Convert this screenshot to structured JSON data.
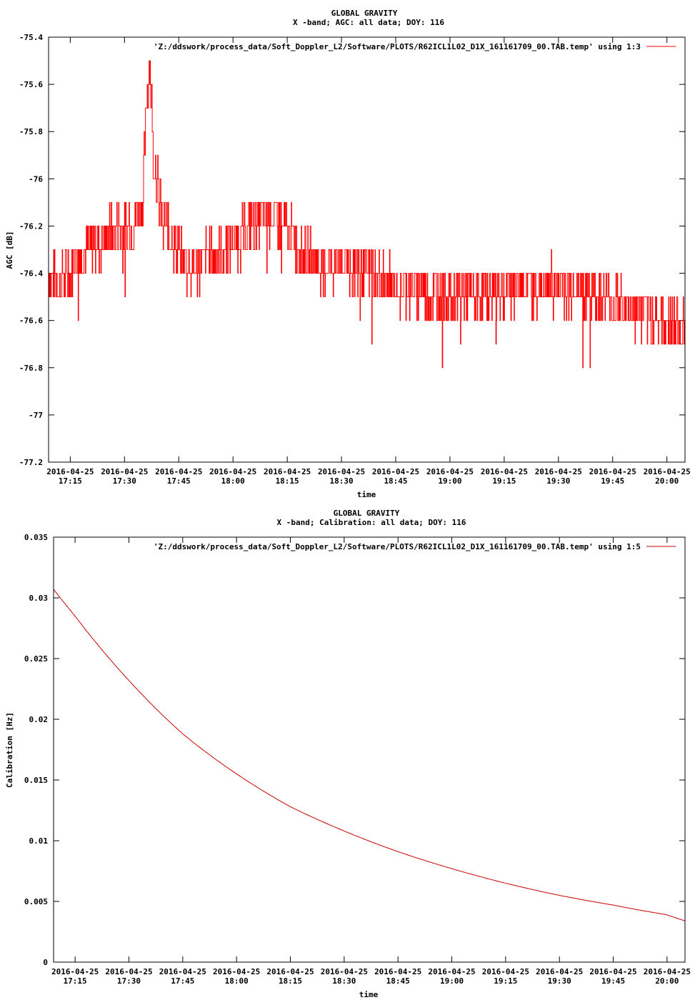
{
  "chart_data": [
    {
      "type": "line",
      "title": "GLOBAL GRAVITY",
      "subtitle": "X -band; AGC: all data; DOY: 116",
      "xlabel": "time",
      "ylabel": "AGC [dB]",
      "ylim": [
        -77.2,
        -75.4
      ],
      "yticks": [
        -75.4,
        -75.6,
        -75.8,
        -76,
        -76.2,
        -76.4,
        -76.6,
        -76.8,
        -77,
        -77.2
      ],
      "yticklabels": [
        "-75.4",
        "-75.6",
        "-75.8",
        "-76",
        "-76.2",
        "-76.4",
        "-76.6",
        "-76.8",
        "-77",
        "-77.2"
      ],
      "xlim": [
        "2016-04-25 17:09",
        "2016-04-25 20:05"
      ],
      "xticks": [
        "17:15",
        "17:30",
        "17:45",
        "18:00",
        "18:15",
        "18:30",
        "18:45",
        "19:00",
        "19:15",
        "19:30",
        "19:45",
        "20:00"
      ],
      "xtick_date": "2016-04-25",
      "grid": false,
      "legend_position": "top-right",
      "series": [
        {
          "name": "'Z:/ddswork/process_data/Soft_Doppler_L2/Software/PLOTS/R62ICL1L02_D1X_161161709_00.TAB.temp' using 1:3",
          "color": "#ff0000",
          "x": [
            "17:09",
            "17:12",
            "17:14",
            "17:16",
            "17:20",
            "17:24",
            "17:28",
            "17:32",
            "17:35",
            "17:36",
            "17:37",
            "17:38",
            "17:40",
            "17:43",
            "17:46",
            "17:50",
            "17:54",
            "17:58",
            "18:02",
            "18:06",
            "18:10",
            "18:13",
            "18:15",
            "18:20",
            "18:25",
            "18:30",
            "18:35",
            "18:40",
            "18:45",
            "18:50",
            "18:55",
            "19:00",
            "19:05",
            "19:10",
            "19:15",
            "19:20",
            "19:25",
            "19:30",
            "19:35",
            "19:40",
            "19:45",
            "19:50",
            "19:55",
            "20:00",
            "20:03",
            "20:05"
          ],
          "values": [
            -76.4,
            -76.45,
            -76.4,
            -76.35,
            -76.3,
            -76.25,
            -76.22,
            -76.18,
            -76.1,
            -75.7,
            -75.5,
            -75.9,
            -76.15,
            -76.25,
            -76.33,
            -76.38,
            -76.32,
            -76.28,
            -76.25,
            -76.18,
            -76.15,
            -76.2,
            -76.22,
            -76.32,
            -76.36,
            -76.36,
            -76.38,
            -76.42,
            -76.45,
            -76.47,
            -76.48,
            -76.48,
            -76.5,
            -76.48,
            -76.47,
            -76.45,
            -76.46,
            -76.45,
            -76.47,
            -76.48,
            -76.53,
            -76.55,
            -76.58,
            -76.6,
            -76.63,
            -76.65
          ]
        }
      ]
    },
    {
      "type": "line",
      "title": "GLOBAL GRAVITY",
      "subtitle": "X -band; Calibration: all data; DOY: 116",
      "xlabel": "time",
      "ylabel": "Calibration [Hz]",
      "ylim": [
        0,
        0.035
      ],
      "yticks": [
        0,
        0.005,
        0.01,
        0.015,
        0.02,
        0.025,
        0.03,
        0.035
      ],
      "yticklabels": [
        "0",
        "0.005",
        "0.01",
        "0.015",
        "0.02",
        "0.025",
        "0.03",
        "0.035"
      ],
      "xlim": [
        "2016-04-25 17:09",
        "2016-04-25 20:05"
      ],
      "xticks": [
        "17:15",
        "17:30",
        "17:45",
        "18:00",
        "18:15",
        "18:30",
        "18:45",
        "19:00",
        "19:15",
        "19:30",
        "19:45",
        "20:00"
      ],
      "xtick_date": "2016-04-25",
      "grid": false,
      "legend_position": "top-right",
      "series": [
        {
          "name": "'Z:/ddswork/process_data/Soft_Doppler_L2/Software/PLOTS/R62ICL1L02_D1X_161161709_00.TAB.temp' using 1:5",
          "color": "#cc0000",
          "x": [
            "17:09",
            "17:15",
            "17:30",
            "17:45",
            "18:00",
            "18:15",
            "18:30",
            "18:45",
            "19:00",
            "19:15",
            "19:30",
            "19:45",
            "20:00",
            "20:05"
          ],
          "values": [
            0.0307,
            0.0285,
            0.0232,
            0.0188,
            0.0155,
            0.0128,
            0.0108,
            0.0091,
            0.0077,
            0.0065,
            0.0055,
            0.0047,
            0.0039,
            0.0034
          ]
        }
      ]
    }
  ]
}
